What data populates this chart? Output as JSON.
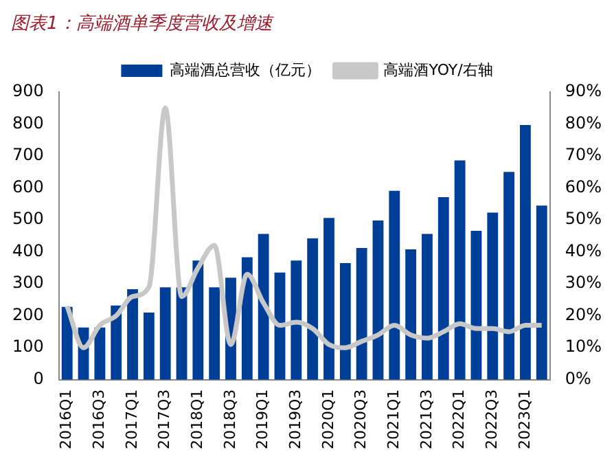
{
  "chart_data": {
    "type": "bar",
    "title": "图表1：高端酒单季度营收及增速",
    "categories": [
      "2016Q1",
      null,
      "2016Q3",
      null,
      "2017Q1",
      null,
      "2017Q3",
      null,
      "2018Q1",
      null,
      "2018Q3",
      null,
      "2019Q1",
      null,
      "2019Q3",
      null,
      "2020Q1",
      null,
      "2020Q3",
      null,
      "2021Q1",
      null,
      "2021Q3",
      null,
      "2022Q1",
      null,
      "2022Q3",
      null,
      "2023Q1",
      null
    ],
    "series": [
      {
        "name": "高端酒总营收（亿元）",
        "color": "#003f98",
        "values": [
          228,
          163,
          163,
          232,
          283,
          210,
          289,
          289,
          373,
          289,
          319,
          383,
          456,
          335,
          373,
          442,
          506,
          365,
          412,
          498,
          591,
          408,
          456,
          571,
          686,
          466,
          523,
          650,
          797,
          545
        ]
      },
      {
        "name": "高端酒YOY/右轴",
        "type": "line",
        "axis": "y2",
        "color": "#c8c8c8",
        "values": [
          23,
          10,
          17,
          20,
          26,
          29,
          85,
          26,
          35,
          42,
          11,
          33,
          24,
          17,
          18,
          16,
          11,
          10,
          12,
          14,
          17,
          14,
          13,
          15,
          17.5,
          16,
          16,
          15,
          17,
          17
        ]
      }
    ],
    "ylim": [
      0,
      900
    ],
    "yticks": [
      0,
      100,
      200,
      300,
      400,
      500,
      600,
      700,
      800,
      900
    ],
    "y2lim": [
      0,
      90
    ],
    "y2ticks": [
      {
        "value": 0,
        "label": "0%"
      },
      {
        "value": 10,
        "label": "10%"
      },
      {
        "value": 20,
        "label": "20%"
      },
      {
        "value": 30,
        "label": "30%"
      },
      {
        "value": 40,
        "label": "40%"
      },
      {
        "value": 50,
        "label": "50%"
      },
      {
        "value": 60,
        "label": "60%"
      },
      {
        "value": 70,
        "label": "70%"
      },
      {
        "value": 80,
        "label": "80%"
      },
      {
        "value": 90,
        "label": "90%"
      }
    ],
    "legend": "top",
    "grid": false,
    "marker": "none"
  }
}
